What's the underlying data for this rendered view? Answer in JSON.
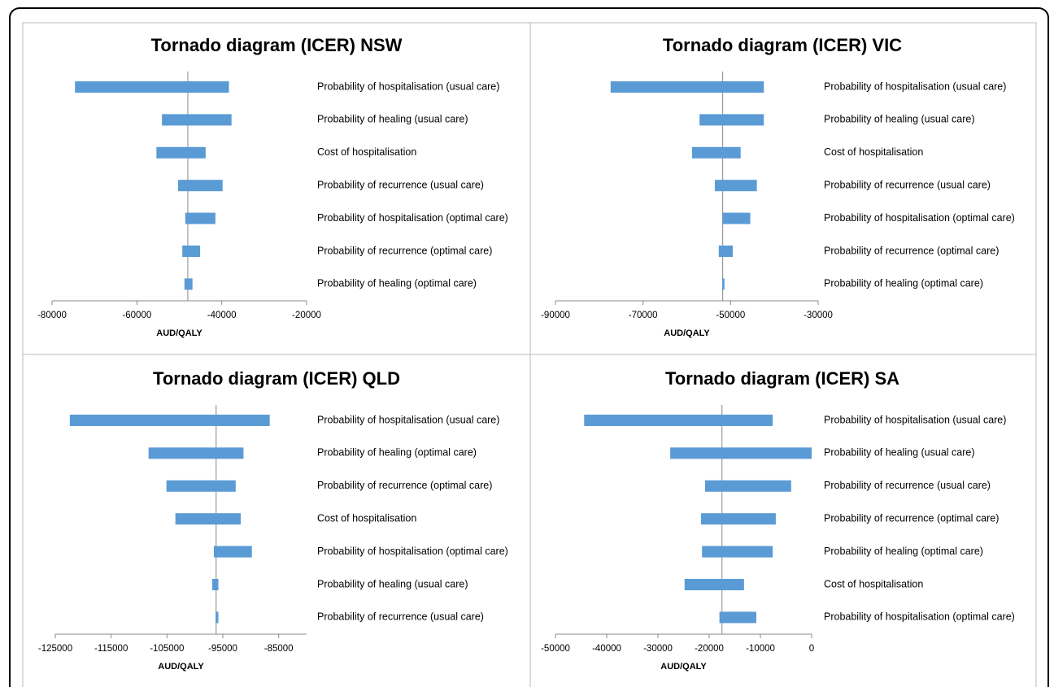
{
  "chart_data": [
    {
      "type": "tornado",
      "title": "Tornado diagram (ICER) NSW",
      "xlabel": "AUD/QALY",
      "color": "#5b9bd5",
      "categories": [
        "Probability of hospitalisation (usual care)",
        "Probability of healing (usual care)",
        "Cost of hospitalisation",
        "Probability of recurrence (usual care)",
        "Probability of hospitalisation (optimal care)",
        "Probability of recurrence (optimal care)",
        "Probability of healing (optimal care)"
      ],
      "values": [
        [
          -74600,
          -38300
        ],
        [
          -54100,
          -37700
        ],
        [
          -55400,
          -43800
        ],
        [
          -50300,
          -39800
        ],
        [
          -48600,
          -41500
        ],
        [
          -49300,
          -45100
        ],
        [
          -48800,
          -46900
        ]
      ],
      "base": -48000,
      "xlim": [
        -80000,
        -20000
      ],
      "xticks": [
        -80000,
        -60000,
        -40000,
        -20000
      ]
    },
    {
      "type": "tornado",
      "title": "Tornado diagram (ICER) VIC",
      "xlabel": "AUD/QALY",
      "color": "#5b9bd5",
      "categories": [
        "Probability of hospitalisation (usual care)",
        "Probability of healing (usual care)",
        "Cost of hospitalisation",
        "Probability of recurrence (usual care)",
        "Probability of hospitalisation (optimal care)",
        "Probability of recurrence (optimal care)",
        "Probability of healing (optimal care)"
      ],
      "values": [
        [
          -77400,
          -42400
        ],
        [
          -57100,
          -42400
        ],
        [
          -58800,
          -47700
        ],
        [
          -53600,
          -44000
        ],
        [
          -51900,
          -45500
        ],
        [
          -52700,
          -49500
        ],
        [
          -51900,
          -51400
        ]
      ],
      "base": -51800,
      "xlim": [
        -90000,
        -30000
      ],
      "xticks": [
        -90000,
        -70000,
        -50000,
        -30000
      ]
    },
    {
      "type": "tornado",
      "title": "Tornado diagram (ICER) QLD",
      "xlabel": "AUD/QALY",
      "color": "#5b9bd5",
      "categories": [
        "Probability of hospitalisation (usual care)",
        "Probability of healing (optimal care)",
        "Probability of recurrence (optimal care)",
        "Cost of hospitalisation",
        "Probability of hospitalisation (optimal care)",
        "Probability of healing (usual care)",
        "Probability of recurrence (usual care)"
      ],
      "values": [
        [
          -122400,
          -86600
        ],
        [
          -108300,
          -91300
        ],
        [
          -105100,
          -92700
        ],
        [
          -103500,
          -91800
        ],
        [
          -96600,
          -89800
        ],
        [
          -96900,
          -95800
        ],
        [
          -96300,
          -95800
        ]
      ],
      "base": -96200,
      "xlim": [
        -125000,
        -80000
      ],
      "xticks": [
        -125000,
        -115000,
        -105000,
        -95000,
        -85000
      ]
    },
    {
      "type": "tornado",
      "title": "Tornado diagram (ICER) SA",
      "xlabel": "AUD/QALY",
      "color": "#5b9bd5",
      "categories": [
        "Probability of hospitalisation (usual care)",
        "Probability of healing (usual care)",
        "Probability of recurrence (usual care)",
        "Probability of recurrence (optimal care)",
        "Probability of healing (optimal care)",
        "Cost of hospitalisation",
        "Probability of hospitalisation (optimal care)"
      ],
      "values": [
        [
          -44400,
          -7600
        ],
        [
          -27600,
          0
        ],
        [
          -20800,
          -4000
        ],
        [
          -21600,
          -7000
        ],
        [
          -21400,
          -7600
        ],
        [
          -24800,
          -13200
        ],
        [
          -18000,
          -10800
        ]
      ],
      "base": -17500,
      "xlim": [
        -50000,
        0
      ],
      "xticks": [
        -50000,
        -40000,
        -30000,
        -20000,
        -10000,
        0
      ]
    }
  ]
}
